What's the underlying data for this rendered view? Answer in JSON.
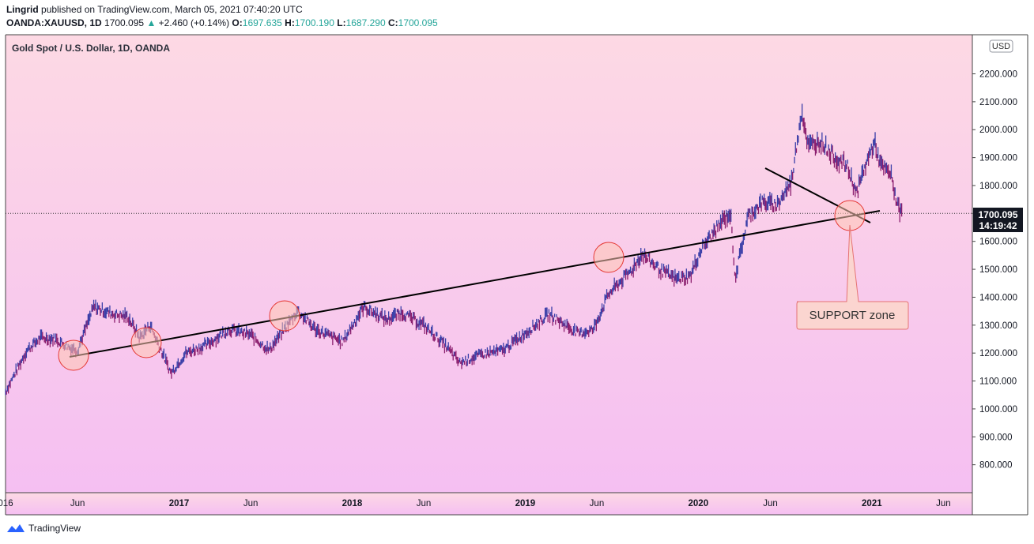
{
  "header": {
    "author": "Lingrid",
    "published_text": "published on TradingView.com, March 05, 2021 07:40:20 UTC",
    "symbol": "OANDA:XAUUSD, 1D",
    "last": "1700.095",
    "change": "+2.460 (+0.14%)",
    "o_label": "O:",
    "o_value": "1697.635",
    "h_label": "H:",
    "h_value": "1700.190",
    "l_label": "L:",
    "l_value": "1687.290",
    "c_label": "C:",
    "c_value": "1700.095"
  },
  "legend_title": "Gold Spot / U.S. Dollar, 1D, OANDA",
  "currency_badge": "USD",
  "price_badge": {
    "price": "1700.095",
    "countdown": "14:19:42"
  },
  "annotation": "SUPPORT zone",
  "footer": {
    "brand": "TradingView"
  },
  "colors": {
    "bg_top": "#fdd9e4",
    "bg_bottom": "#f5bff2",
    "candles": "#8b1e6e",
    "candles_alt": "#3b3fa8",
    "trendline": "#000000",
    "circle_fill": "#ffc7b3",
    "circle_stroke": "#e53935",
    "callout_fill": "#fbd5d0",
    "callout_stroke": "#e57373"
  },
  "chart_data": {
    "type": "line",
    "title": "Gold Spot / U.S. Dollar, 1D, OANDA",
    "ylabel": "USD",
    "ylim": [
      700,
      2340
    ],
    "yticks": [
      800,
      900,
      1000,
      1100,
      1200,
      1300,
      1400,
      1500,
      1600,
      1700,
      1800,
      1900,
      2000,
      2100,
      2200
    ],
    "ytick_labels": [
      "800.000",
      "900.000",
      "1000.000",
      "1100.000",
      "1200.000",
      "1300.000",
      "1400.000",
      "1500.000",
      "1600.000",
      "1700.000",
      "1800.000",
      "1900.000",
      "2000.000",
      "2100.000",
      "2200.000"
    ],
    "xlim": [
      "2016-01-01",
      "2021-08-01"
    ],
    "xticks": [
      "2016-01-01",
      "2016-06-01",
      "2017-01-01",
      "2017-06-01",
      "2018-01-01",
      "2018-06-01",
      "2019-01-01",
      "2019-06-01",
      "2020-01-01",
      "2020-06-01",
      "2021-01-01",
      "2021-06-01"
    ],
    "xtick_labels": [
      "016",
      "Jun",
      "2017",
      "Jun",
      "2018",
      "Jun",
      "2019",
      "Jun",
      "2020",
      "Jun",
      "2021",
      "Jun"
    ],
    "series": [
      {
        "x": [
          "2016-01-01",
          "2016-02-15",
          "2016-03-15",
          "2016-04-15",
          "2016-05-15",
          "2016-06-01",
          "2016-07-05",
          "2016-08-15",
          "2016-09-15",
          "2016-10-10",
          "2016-11-01",
          "2016-12-15",
          "2017-01-15",
          "2017-03-01",
          "2017-04-15",
          "2017-06-01",
          "2017-07-10",
          "2017-09-08",
          "2017-10-15",
          "2017-12-12",
          "2018-01-25",
          "2018-03-15",
          "2018-04-15",
          "2018-06-01",
          "2018-07-15",
          "2018-08-16",
          "2018-10-01",
          "2018-11-15",
          "2019-01-15",
          "2019-02-20",
          "2019-04-23",
          "2019-05-25",
          "2019-06-25",
          "2019-08-15",
          "2019-09-04",
          "2019-10-15",
          "2019-11-15",
          "2019-12-15",
          "2020-01-08",
          "2020-02-24",
          "2020-03-09",
          "2020-03-19",
          "2020-04-15",
          "2020-05-15",
          "2020-06-15",
          "2020-07-15",
          "2020-08-06",
          "2020-08-20",
          "2020-09-15",
          "2020-10-15",
          "2020-11-10",
          "2020-11-30",
          "2020-12-15",
          "2021-01-06",
          "2021-01-20",
          "2021-02-10",
          "2021-02-25",
          "2021-03-05"
        ],
        "y": [
          1061,
          1210,
          1255,
          1250,
          1220,
          1212,
          1365,
          1340,
          1330,
          1255,
          1300,
          1128,
          1200,
          1230,
          1285,
          1265,
          1210,
          1352,
          1285,
          1240,
          1365,
          1320,
          1345,
          1300,
          1230,
          1165,
          1195,
          1210,
          1290,
          1340,
          1270,
          1285,
          1410,
          1500,
          1555,
          1495,
          1465,
          1475,
          1575,
          1680,
          1700,
          1470,
          1690,
          1740,
          1730,
          1810,
          2070,
          1940,
          1960,
          1900,
          1870,
          1770,
          1855,
          1955,
          1870,
          1840,
          1725,
          1700.095
        ]
      }
    ],
    "annotations": [
      "SUPPORT zone"
    ],
    "last_price": 1700.095
  }
}
